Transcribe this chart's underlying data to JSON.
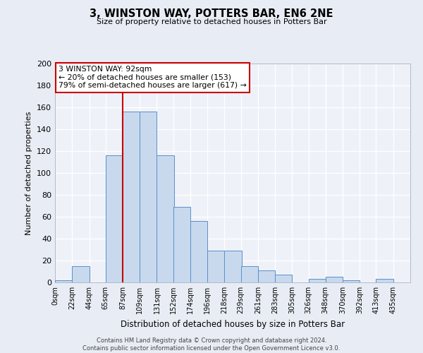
{
  "title": "3, WINSTON WAY, POTTERS BAR, EN6 2NE",
  "subtitle": "Size of property relative to detached houses in Potters Bar",
  "xlabel": "Distribution of detached houses by size in Potters Bar",
  "ylabel": "Number of detached properties",
  "bin_labels": [
    "0sqm",
    "22sqm",
    "44sqm",
    "65sqm",
    "87sqm",
    "109sqm",
    "131sqm",
    "152sqm",
    "174sqm",
    "196sqm",
    "218sqm",
    "239sqm",
    "261sqm",
    "283sqm",
    "305sqm",
    "326sqm",
    "348sqm",
    "370sqm",
    "392sqm",
    "413sqm",
    "435sqm"
  ],
  "bar_values": [
    2,
    15,
    0,
    116,
    156,
    156,
    116,
    69,
    56,
    29,
    29,
    15,
    11,
    7,
    0,
    3,
    5,
    2,
    0,
    3,
    0
  ],
  "bar_color": "#c8d9ee",
  "bar_edge_color": "#5b8fc9",
  "bar_edge_width": 0.7,
  "vline_x": 87,
  "vline_color": "#cc0000",
  "ylim": [
    0,
    200
  ],
  "yticks": [
    0,
    20,
    40,
    60,
    80,
    100,
    120,
    140,
    160,
    180,
    200
  ],
  "annotation_title": "3 WINSTON WAY: 92sqm",
  "annotation_line1": "← 20% of detached houses are smaller (153)",
  "annotation_line2": "79% of semi-detached houses are larger (617) →",
  "annotation_box_color": "#ffffff",
  "annotation_box_edge_color": "#cc0000",
  "bg_color": "#e8edf5",
  "plot_bg_color": "#eef2f8",
  "footer_line1": "Contains HM Land Registry data © Crown copyright and database right 2024.",
  "footer_line2": "Contains public sector information licensed under the Open Government Licence v3.0.",
  "bin_edges": [
    0,
    22,
    44,
    65,
    87,
    109,
    131,
    152,
    174,
    196,
    218,
    239,
    261,
    283,
    305,
    326,
    348,
    370,
    392,
    413,
    435
  ],
  "bin_width": 22
}
